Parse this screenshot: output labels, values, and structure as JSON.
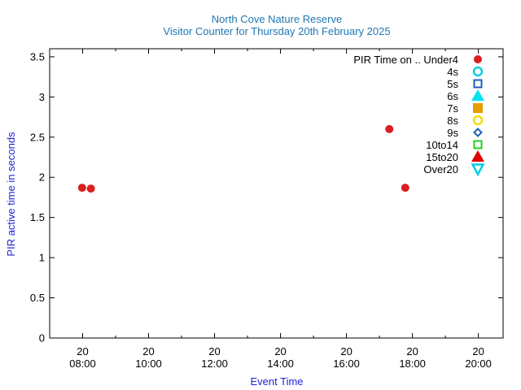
{
  "chart_data": {
    "type": "scatter",
    "title": "North Cove Nature Reserve",
    "subtitle": "Visitor Counter for Thursday 20th February 2025",
    "xlabel": "Event Time",
    "ylabel": "PIR active time in seconds",
    "xlim": [
      "07:00",
      "20:45"
    ],
    "ylim": [
      0,
      3.6
    ],
    "x_ticks": [
      {
        "value": "08:00",
        "label_top": "20",
        "label_bottom": "08:00"
      },
      {
        "value": "10:00",
        "label_top": "20",
        "label_bottom": "10:00"
      },
      {
        "value": "12:00",
        "label_top": "20",
        "label_bottom": "12:00"
      },
      {
        "value": "14:00",
        "label_top": "20",
        "label_bottom": "14:00"
      },
      {
        "value": "16:00",
        "label_top": "20",
        "label_bottom": "16:00"
      },
      {
        "value": "18:00",
        "label_top": "20",
        "label_bottom": "18:00"
      },
      {
        "value": "20:00",
        "label_top": "20",
        "label_bottom": "20:00"
      }
    ],
    "y_ticks": [
      {
        "value": 0,
        "label": "0"
      },
      {
        "value": 0.5,
        "label": "0.5"
      },
      {
        "value": 1,
        "label": "1"
      },
      {
        "value": 1.5,
        "label": "1.5"
      },
      {
        "value": 2,
        "label": "2"
      },
      {
        "value": 2.5,
        "label": "2.5"
      },
      {
        "value": 3,
        "label": "3"
      },
      {
        "value": 3.5,
        "label": "3.5"
      }
    ],
    "grid": false,
    "legend_position": "top-right",
    "legend_title": "PIR Time on ..",
    "series": [
      {
        "name": "Under4",
        "marker": "circle-filled",
        "color": "#dc1e1e",
        "points": [
          {
            "x": "07:59",
            "y": 1.87
          },
          {
            "x": "08:15",
            "y": 1.86
          },
          {
            "x": "17:18",
            "y": 2.6
          },
          {
            "x": "17:47",
            "y": 1.87
          }
        ]
      },
      {
        "name": "4s",
        "marker": "circle-open",
        "color": "#00cfe0",
        "points": []
      },
      {
        "name": "5s",
        "marker": "square-open",
        "color": "#1f5fb4",
        "points": []
      },
      {
        "name": "6s",
        "marker": "triangle-up-filled",
        "color": "#00e5ee",
        "points": []
      },
      {
        "name": "7s",
        "marker": "square-filled",
        "color": "#e69f00",
        "points": []
      },
      {
        "name": "8s",
        "marker": "circle-open",
        "color": "#f0e000",
        "points": []
      },
      {
        "name": "9s",
        "marker": "diamond-open",
        "color": "#1f5fb4",
        "points": []
      },
      {
        "name": "10to14",
        "marker": "square-open",
        "color": "#22d022",
        "points": []
      },
      {
        "name": "15to20",
        "marker": "triangle-up-filled",
        "color": "#e00000",
        "points": []
      },
      {
        "name": "Over20",
        "marker": "triangle-down-open",
        "color": "#00cfe0",
        "points": []
      }
    ]
  }
}
